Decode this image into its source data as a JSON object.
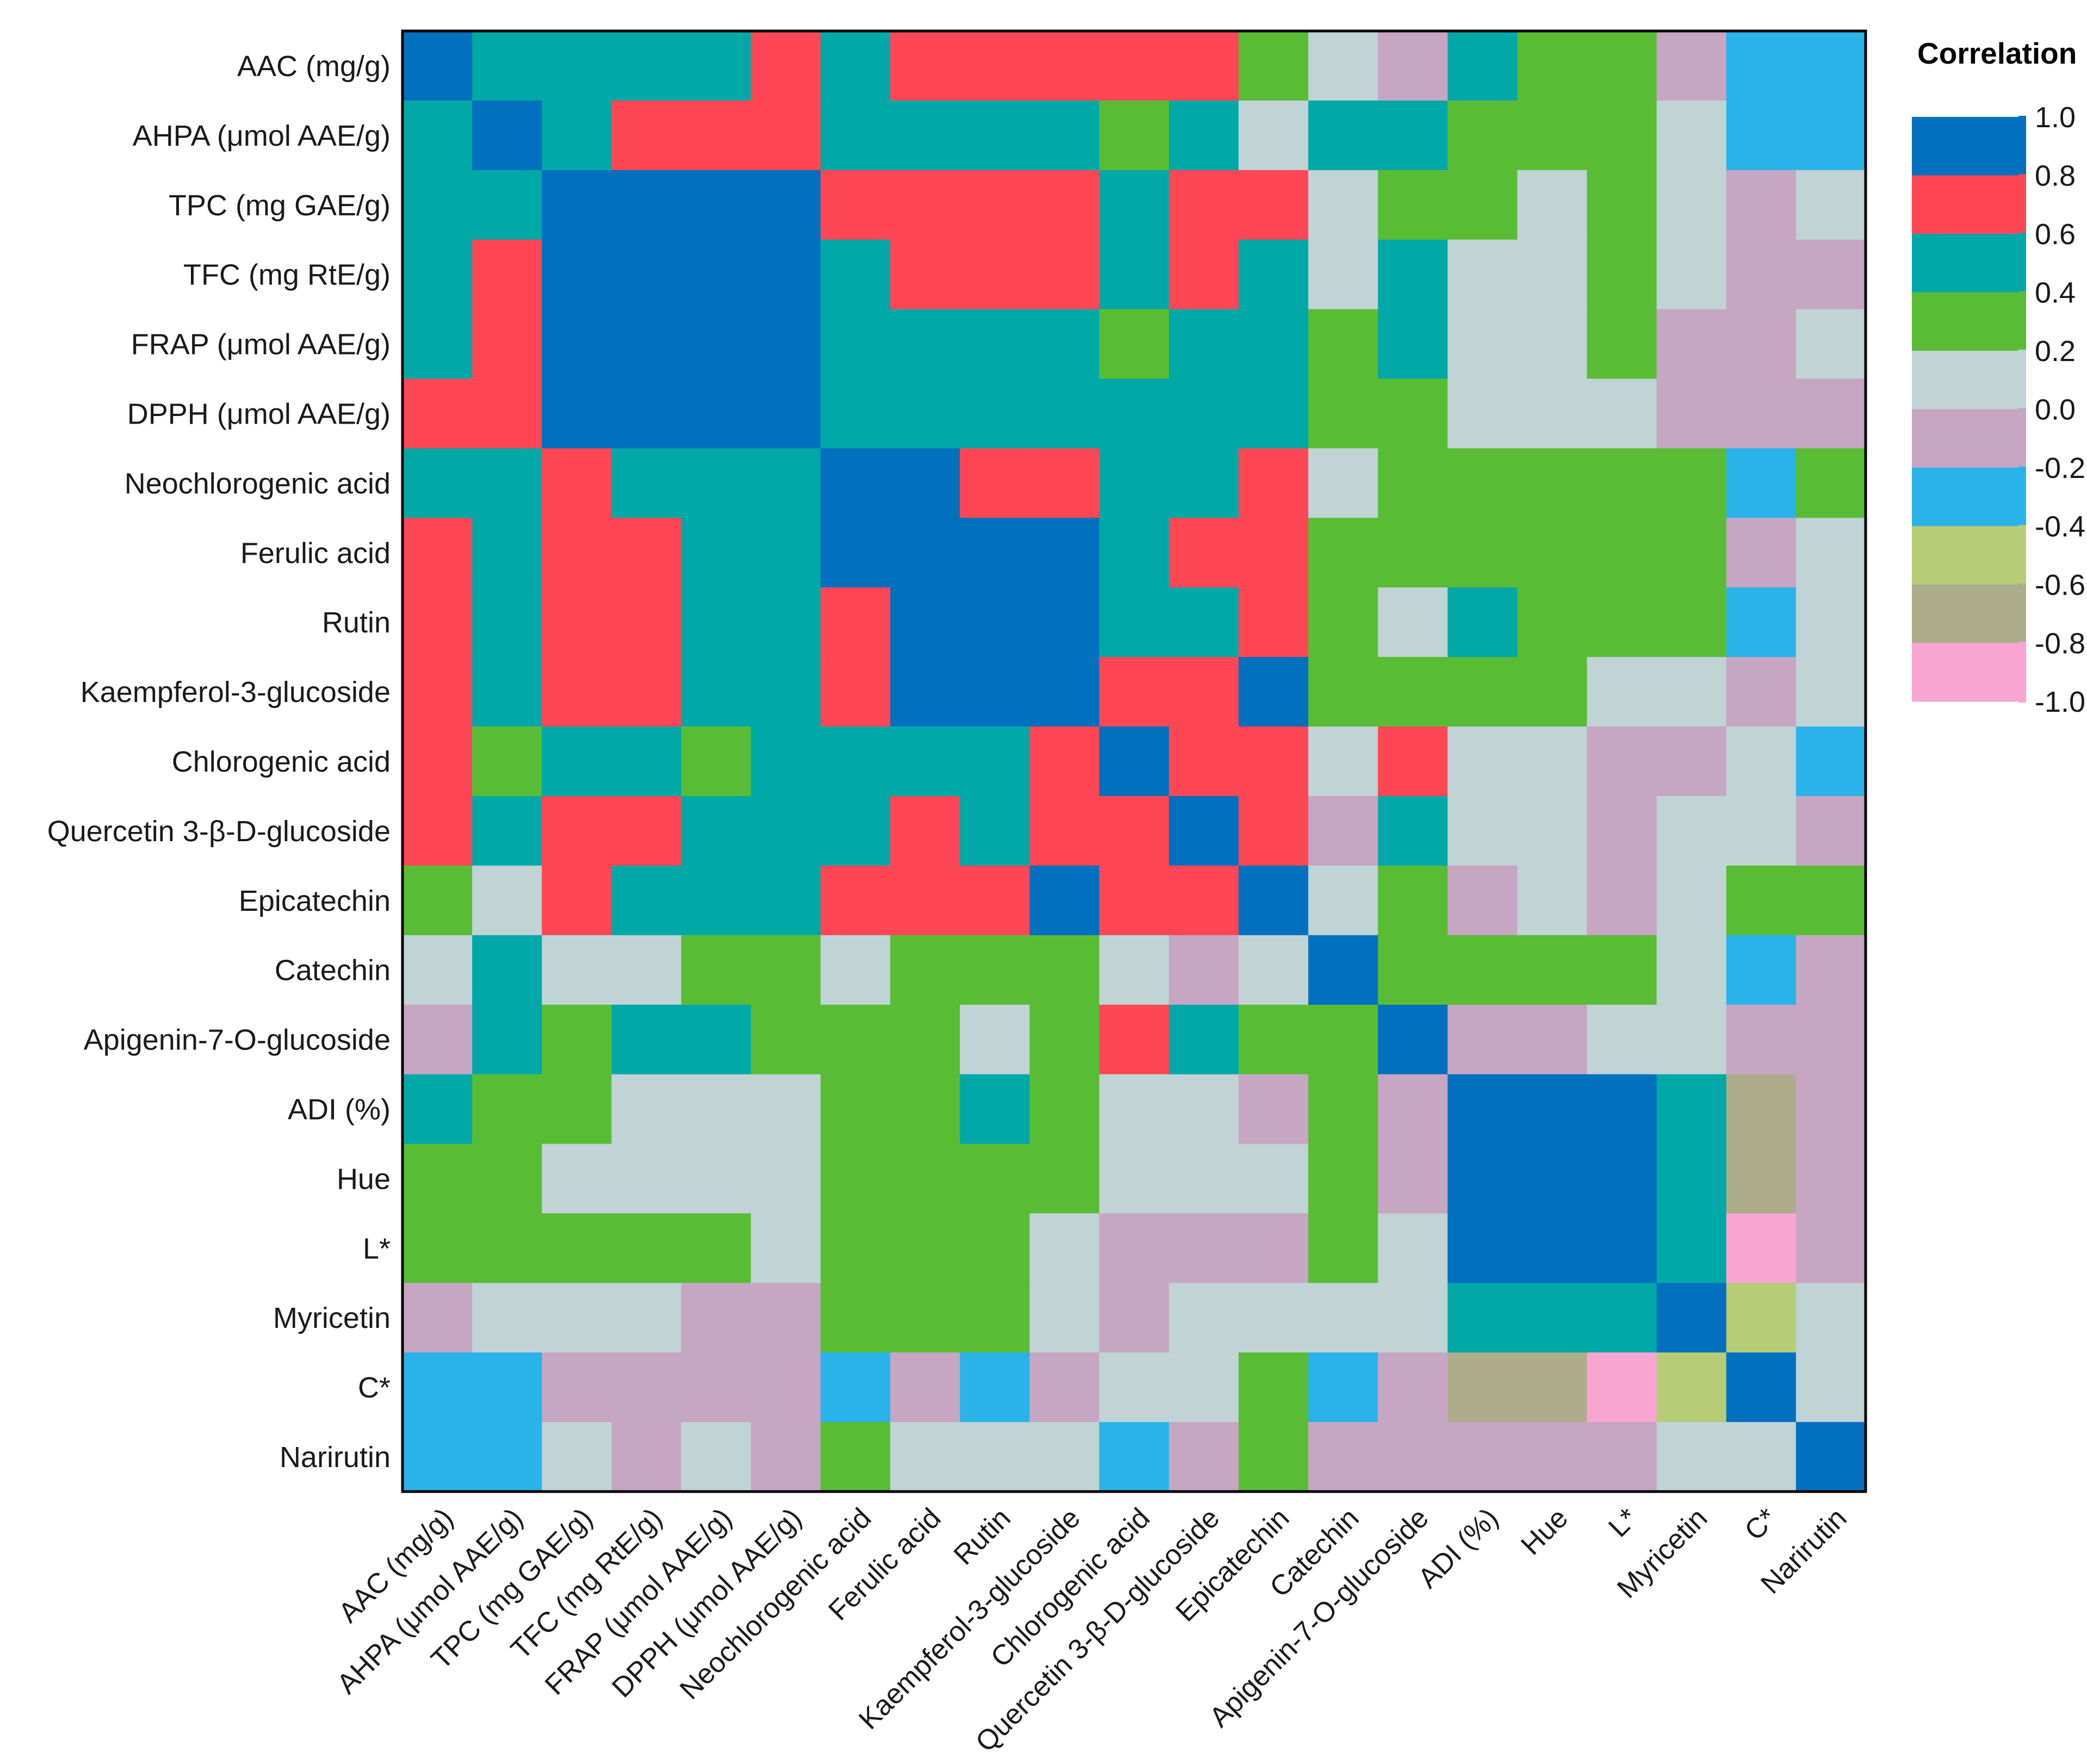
{
  "chart_data": {
    "type": "heatmap",
    "title": "",
    "xlabel": "",
    "ylabel": "",
    "variables": [
      "AAC (mg/g)",
      "AHPA (μmol AAE/g)",
      "TPC (mg GAE/g)",
      "TFC (mg RtE/g)",
      "FRAP (μmol AAE/g)",
      "DPPH (μmol AAE/g)",
      "Neochlorogenic acid",
      "Ferulic acid",
      "Rutin",
      "Kaempferol-3-glucoside",
      "Chlorogenic acid",
      "Quercetin 3-β-D-glucoside",
      "Epicatechin",
      "Catechin",
      "Apigenin-7-O-glucoside",
      "ADI (%)",
      "Hue",
      "L*",
      "Myricetin",
      "C*",
      "Narirutin"
    ],
    "matrix": [
      [
        1.0,
        0.5,
        0.5,
        0.5,
        0.5,
        0.7,
        0.5,
        0.7,
        0.7,
        0.7,
        0.7,
        0.7,
        0.3,
        0.1,
        -0.1,
        0.5,
        0.3,
        0.3,
        -0.1,
        -0.3,
        -0.3
      ],
      [
        0.5,
        1.0,
        0.5,
        0.7,
        0.7,
        0.7,
        0.5,
        0.5,
        0.5,
        0.5,
        0.3,
        0.5,
        0.1,
        0.5,
        0.5,
        0.3,
        0.3,
        0.3,
        0.1,
        -0.3,
        -0.3
      ],
      [
        0.5,
        0.5,
        1.0,
        0.9,
        0.9,
        0.9,
        0.7,
        0.7,
        0.7,
        0.7,
        0.5,
        0.7,
        0.7,
        0.1,
        0.3,
        0.3,
        0.1,
        0.3,
        0.1,
        -0.1,
        0.1
      ],
      [
        0.5,
        0.7,
        0.9,
        1.0,
        0.9,
        0.9,
        0.5,
        0.7,
        0.7,
        0.7,
        0.5,
        0.7,
        0.5,
        0.1,
        0.5,
        0.1,
        0.1,
        0.3,
        0.1,
        -0.1,
        -0.1
      ],
      [
        0.5,
        0.7,
        0.9,
        0.9,
        1.0,
        0.9,
        0.5,
        0.5,
        0.5,
        0.5,
        0.3,
        0.5,
        0.5,
        0.3,
        0.5,
        0.1,
        0.1,
        0.3,
        -0.1,
        -0.1,
        0.1
      ],
      [
        0.7,
        0.7,
        0.9,
        0.9,
        0.9,
        1.0,
        0.5,
        0.5,
        0.5,
        0.5,
        0.5,
        0.5,
        0.5,
        0.3,
        0.3,
        0.1,
        0.1,
        0.1,
        -0.1,
        -0.1,
        -0.1
      ],
      [
        0.5,
        0.5,
        0.7,
        0.5,
        0.5,
        0.5,
        1.0,
        0.9,
        0.7,
        0.7,
        0.5,
        0.5,
        0.7,
        0.1,
        0.3,
        0.3,
        0.3,
        0.3,
        0.3,
        -0.3,
        0.3
      ],
      [
        0.7,
        0.5,
        0.7,
        0.7,
        0.5,
        0.5,
        0.9,
        1.0,
        0.9,
        0.9,
        0.5,
        0.7,
        0.7,
        0.3,
        0.3,
        0.3,
        0.3,
        0.3,
        0.3,
        -0.1,
        0.1
      ],
      [
        0.7,
        0.5,
        0.7,
        0.7,
        0.5,
        0.5,
        0.7,
        0.9,
        1.0,
        0.9,
        0.5,
        0.5,
        0.7,
        0.3,
        0.1,
        0.5,
        0.3,
        0.3,
        0.3,
        -0.3,
        0.1
      ],
      [
        0.7,
        0.5,
        0.7,
        0.7,
        0.5,
        0.5,
        0.7,
        0.9,
        0.9,
        1.0,
        0.7,
        0.7,
        0.9,
        0.3,
        0.3,
        0.3,
        0.3,
        0.1,
        0.1,
        -0.1,
        0.1
      ],
      [
        0.7,
        0.3,
        0.5,
        0.5,
        0.3,
        0.5,
        0.5,
        0.5,
        0.5,
        0.7,
        1.0,
        0.7,
        0.7,
        0.1,
        0.7,
        0.1,
        0.1,
        -0.1,
        -0.1,
        0.1,
        -0.3
      ],
      [
        0.7,
        0.5,
        0.7,
        0.7,
        0.5,
        0.5,
        0.5,
        0.7,
        0.5,
        0.7,
        0.7,
        1.0,
        0.7,
        -0.1,
        0.5,
        0.1,
        0.1,
        -0.1,
        0.1,
        0.1,
        -0.1
      ],
      [
        0.3,
        0.1,
        0.7,
        0.5,
        0.5,
        0.5,
        0.7,
        0.7,
        0.7,
        0.9,
        0.7,
        0.7,
        1.0,
        0.1,
        0.3,
        -0.1,
        0.1,
        -0.1,
        0.1,
        0.3,
        0.3
      ],
      [
        0.1,
        0.5,
        0.1,
        0.1,
        0.3,
        0.3,
        0.1,
        0.3,
        0.3,
        0.3,
        0.1,
        -0.1,
        0.1,
        1.0,
        0.3,
        0.3,
        0.3,
        0.3,
        0.1,
        -0.3,
        -0.1
      ],
      [
        -0.1,
        0.5,
        0.3,
        0.5,
        0.5,
        0.3,
        0.3,
        0.3,
        0.1,
        0.3,
        0.7,
        0.5,
        0.3,
        0.3,
        1.0,
        -0.1,
        -0.1,
        0.1,
        0.1,
        -0.1,
        -0.1
      ],
      [
        0.5,
        0.3,
        0.3,
        0.1,
        0.1,
        0.1,
        0.3,
        0.3,
        0.5,
        0.3,
        0.1,
        0.1,
        -0.1,
        0.3,
        -0.1,
        1.0,
        0.9,
        0.9,
        0.5,
        -0.7,
        -0.1
      ],
      [
        0.3,
        0.3,
        0.1,
        0.1,
        0.1,
        0.1,
        0.3,
        0.3,
        0.3,
        0.3,
        0.1,
        0.1,
        0.1,
        0.3,
        -0.1,
        0.9,
        1.0,
        0.9,
        0.5,
        -0.7,
        -0.1
      ],
      [
        0.3,
        0.3,
        0.3,
        0.3,
        0.3,
        0.1,
        0.3,
        0.3,
        0.3,
        0.1,
        -0.1,
        -0.1,
        -0.1,
        0.3,
        0.1,
        0.9,
        0.9,
        1.0,
        0.5,
        -0.9,
        -0.1
      ],
      [
        -0.1,
        0.1,
        0.1,
        0.1,
        -0.1,
        -0.1,
        0.3,
        0.3,
        0.3,
        0.1,
        -0.1,
        0.1,
        0.1,
        0.1,
        0.1,
        0.5,
        0.5,
        0.5,
        1.0,
        -0.5,
        0.1
      ],
      [
        -0.3,
        -0.3,
        -0.1,
        -0.1,
        -0.1,
        -0.1,
        -0.3,
        -0.1,
        -0.3,
        -0.1,
        0.1,
        0.1,
        0.3,
        -0.3,
        -0.1,
        -0.7,
        -0.7,
        -0.9,
        -0.5,
        1.0,
        0.1
      ],
      [
        -0.3,
        -0.3,
        0.1,
        -0.1,
        0.1,
        -0.1,
        0.3,
        0.1,
        0.1,
        0.1,
        -0.3,
        -0.1,
        0.3,
        -0.1,
        -0.1,
        -0.1,
        -0.1,
        -0.1,
        0.1,
        0.1,
        1.0
      ]
    ],
    "legend": {
      "title": "Correlation",
      "placement": "top-right",
      "tick_labels": [
        "1.0",
        "0.8",
        "0.6",
        "0.4",
        "0.2",
        "0.0",
        "-0.2",
        "-0.4",
        "-0.6",
        "-0.8",
        "-1.0"
      ],
      "bins": [
        {
          "min": 0.8,
          "max": 1.0,
          "color": "#0070BF"
        },
        {
          "min": 0.6,
          "max": 0.8,
          "color": "#FF4654"
        },
        {
          "min": 0.4,
          "max": 0.6,
          "color": "#00A9A8"
        },
        {
          "min": 0.2,
          "max": 0.4,
          "color": "#58BD35"
        },
        {
          "min": 0.0,
          "max": 0.2,
          "color": "#C0D3D5"
        },
        {
          "min": -0.2,
          "max": 0.0,
          "color": "#C6A6C3"
        },
        {
          "min": -0.4,
          "max": -0.2,
          "color": "#29B3E9"
        },
        {
          "min": -0.6,
          "max": -0.4,
          "color": "#B6CD75"
        },
        {
          "min": -0.8,
          "max": -0.6,
          "color": "#ADAD8C"
        },
        {
          "min": -1.0,
          "max": -0.8,
          "color": "#F8A6D1"
        }
      ]
    }
  }
}
